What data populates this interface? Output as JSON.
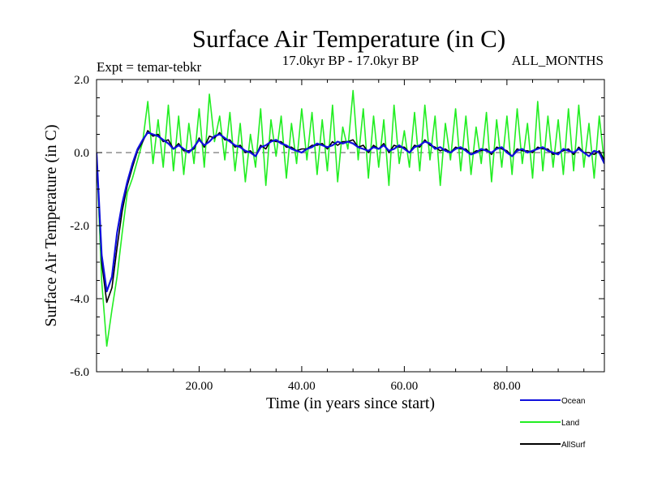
{
  "chart_data": {
    "type": "line",
    "title": "Surface Air Temperature (in C)",
    "subtitle_left": "Expt = temar-tebkr",
    "subtitle_center": "17.0kyr BP - 17.0kyr BP",
    "subtitle_right": "ALL_MONTHS",
    "xlabel": "Time (in years since start)",
    "ylabel": "Surface Air Temperature (in C)",
    "xlim": [
      0,
      99
    ],
    "ylim": [
      -6.0,
      2.0
    ],
    "x_ticks": [
      {
        "value": 20,
        "label": "20.00"
      },
      {
        "value": 40,
        "label": "40.00"
      },
      {
        "value": 60,
        "label": "60.00"
      },
      {
        "value": 80,
        "label": "80.00"
      }
    ],
    "y_ticks": [
      {
        "value": 2.0,
        "label": "2.0"
      },
      {
        "value": 0.0,
        "label": "0.0"
      },
      {
        "value": -2.0,
        "label": "-2.0"
      },
      {
        "value": -4.0,
        "label": "-4.0"
      },
      {
        "value": -6.0,
        "label": "-6.0"
      }
    ],
    "reference_line": {
      "value": 0.0,
      "style": "dashed"
    },
    "legend_position": "bottom-right",
    "series": [
      {
        "name": "Ocean",
        "color": "#1010dd",
        "x": [
          0,
          1,
          2,
          3,
          4,
          5,
          6,
          7,
          8,
          9,
          10,
          11,
          12,
          13,
          14,
          15,
          16,
          17,
          18,
          19,
          20,
          21,
          22,
          23,
          24,
          25,
          26,
          27,
          28,
          29,
          30,
          31,
          32,
          33,
          34,
          35,
          36,
          37,
          38,
          39,
          40,
          41,
          42,
          43,
          44,
          45,
          46,
          47,
          48,
          49,
          50,
          51,
          52,
          53,
          54,
          55,
          56,
          57,
          58,
          59,
          60,
          61,
          62,
          63,
          64,
          65,
          66,
          67,
          68,
          69,
          70,
          71,
          72,
          73,
          74,
          75,
          76,
          77,
          78,
          79,
          80,
          81,
          82,
          83,
          84,
          85,
          86,
          87,
          88,
          89,
          90,
          91,
          92,
          93,
          94,
          95,
          96,
          97,
          98,
          99
        ],
        "values": [
          0.0,
          -2.8,
          -3.8,
          -3.4,
          -2.2,
          -1.4,
          -0.8,
          -0.3,
          0.1,
          0.35,
          0.55,
          0.5,
          0.45,
          0.35,
          0.25,
          0.1,
          0.2,
          0.1,
          0.0,
          0.15,
          0.35,
          0.2,
          0.3,
          0.45,
          0.5,
          0.4,
          0.3,
          0.2,
          0.15,
          0.05,
          0.0,
          -0.1,
          0.15,
          0.2,
          0.3,
          0.35,
          0.25,
          0.2,
          0.1,
          0.05,
          0.0,
          0.1,
          0.15,
          0.25,
          0.2,
          0.15,
          0.2,
          0.3,
          0.25,
          0.3,
          0.25,
          0.15,
          0.1,
          0.05,
          0.15,
          0.1,
          0.2,
          0.05,
          0.1,
          0.2,
          0.1,
          0.0,
          0.15,
          0.2,
          0.3,
          0.25,
          0.1,
          0.15,
          0.05,
          0.0,
          0.1,
          0.15,
          0.05,
          -0.05,
          0.0,
          0.1,
          0.05,
          0.0,
          0.1,
          0.15,
          0.0,
          -0.1,
          0.05,
          0.1,
          0.0,
          0.05,
          0.1,
          0.15,
          0.05,
          0.0,
          -0.05,
          0.1,
          0.05,
          0.0,
          0.1,
          0.0,
          -0.1,
          0.05,
          0.0,
          -0.3
        ]
      },
      {
        "name": "Land",
        "color": "#22ee22",
        "x": [
          0,
          1,
          2,
          3,
          4,
          5,
          6,
          7,
          8,
          9,
          10,
          11,
          12,
          13,
          14,
          15,
          16,
          17,
          18,
          19,
          20,
          21,
          22,
          23,
          24,
          25,
          26,
          27,
          28,
          29,
          30,
          31,
          32,
          33,
          34,
          35,
          36,
          37,
          38,
          39,
          40,
          41,
          42,
          43,
          44,
          45,
          46,
          47,
          48,
          49,
          50,
          51,
          52,
          53,
          54,
          55,
          56,
          57,
          58,
          59,
          60,
          61,
          62,
          63,
          64,
          65,
          66,
          67,
          68,
          69,
          70,
          71,
          72,
          73,
          74,
          75,
          76,
          77,
          78,
          79,
          80,
          81,
          82,
          83,
          84,
          85,
          86,
          87,
          88,
          89,
          90,
          91,
          92,
          93,
          94,
          95,
          96,
          97,
          98,
          99
        ],
        "values": [
          0.0,
          -3.5,
          -5.3,
          -4.3,
          -3.4,
          -2.2,
          -1.1,
          -0.7,
          -0.2,
          0.3,
          1.4,
          -0.3,
          0.9,
          -0.4,
          1.3,
          -0.5,
          1.0,
          -0.6,
          0.8,
          -0.3,
          1.2,
          -0.4,
          1.6,
          0.3,
          1.0,
          -0.2,
          1.1,
          -0.5,
          0.8,
          -0.8,
          0.5,
          -0.4,
          1.2,
          -0.9,
          0.9,
          -0.1,
          1.0,
          -0.7,
          0.8,
          -0.3,
          1.2,
          -0.2,
          1.1,
          -0.6,
          0.9,
          -0.5,
          1.3,
          -0.8,
          0.7,
          0.1,
          1.7,
          -0.2,
          1.2,
          -0.7,
          1.0,
          -0.4,
          0.9,
          -0.9,
          1.3,
          -0.3,
          0.6,
          -0.4,
          1.1,
          -0.5,
          1.3,
          -0.2,
          1.0,
          -0.9,
          0.8,
          -0.2,
          1.2,
          -0.5,
          1.0,
          -0.6,
          0.7,
          -0.3,
          1.1,
          -0.8,
          0.9,
          -0.4,
          1.0,
          -0.6,
          1.2,
          -0.3,
          0.8,
          -0.7,
          1.4,
          -0.5,
          1.0,
          -0.4,
          0.9,
          -0.6,
          1.2,
          -0.5,
          1.3,
          -0.4,
          0.8,
          -0.7,
          1.0,
          -0.3
        ]
      },
      {
        "name": "AllSurf",
        "color": "#000000",
        "x": [
          0,
          1,
          2,
          3,
          4,
          5,
          6,
          7,
          8,
          9,
          10,
          11,
          12,
          13,
          14,
          15,
          16,
          17,
          18,
          19,
          20,
          21,
          22,
          23,
          24,
          25,
          26,
          27,
          28,
          29,
          30,
          31,
          32,
          33,
          34,
          35,
          36,
          37,
          38,
          39,
          40,
          41,
          42,
          43,
          44,
          45,
          46,
          47,
          48,
          49,
          50,
          51,
          52,
          53,
          54,
          55,
          56,
          57,
          58,
          59,
          60,
          61,
          62,
          63,
          64,
          65,
          66,
          67,
          68,
          69,
          70,
          71,
          72,
          73,
          74,
          75,
          76,
          77,
          78,
          79,
          80,
          81,
          82,
          83,
          84,
          85,
          86,
          87,
          88,
          89,
          90,
          91,
          92,
          93,
          94,
          95,
          96,
          97,
          98,
          99
        ],
        "values": [
          0.0,
          -3.0,
          -4.1,
          -3.7,
          -2.6,
          -1.6,
          -0.9,
          -0.4,
          0.05,
          0.3,
          0.6,
          0.45,
          0.5,
          0.3,
          0.35,
          0.1,
          0.25,
          0.05,
          0.05,
          0.1,
          0.4,
          0.15,
          0.45,
          0.4,
          0.55,
          0.35,
          0.35,
          0.15,
          0.2,
          0.0,
          0.05,
          -0.1,
          0.2,
          0.1,
          0.35,
          0.3,
          0.3,
          0.15,
          0.15,
          0.05,
          0.1,
          0.1,
          0.2,
          0.2,
          0.25,
          0.1,
          0.3,
          0.2,
          0.3,
          0.3,
          0.35,
          0.15,
          0.2,
          0.0,
          0.2,
          0.1,
          0.25,
          0.0,
          0.2,
          0.15,
          0.15,
          0.0,
          0.2,
          0.15,
          0.35,
          0.2,
          0.15,
          0.05,
          0.1,
          0.0,
          0.15,
          0.1,
          0.1,
          -0.05,
          0.05,
          0.05,
          0.1,
          -0.05,
          0.15,
          0.1,
          0.05,
          -0.1,
          0.1,
          0.05,
          0.05,
          0.0,
          0.15,
          0.1,
          0.1,
          -0.05,
          0.0,
          0.05,
          0.1,
          -0.05,
          0.15,
          0.0,
          0.0,
          -0.05,
          0.05,
          -0.2
        ]
      }
    ]
  }
}
